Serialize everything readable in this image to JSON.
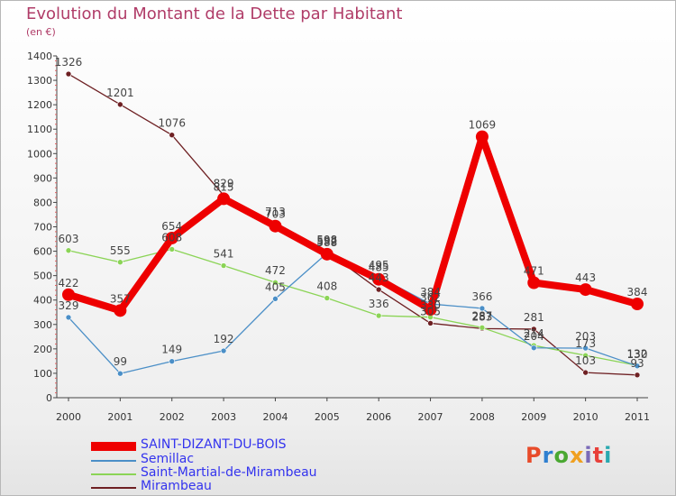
{
  "title": "Evolution du Montant de la Dette par Habitant",
  "subtitle": "(en €)",
  "brand": {
    "text": "Proxiti",
    "colors": [
      "#e84b2a",
      "#2f7fd0",
      "#4aa832",
      "#f0a020",
      "#7a6ab8",
      "#e8403a",
      "#2aa9b0"
    ]
  },
  "chart_data": {
    "type": "line",
    "title": "Evolution du Montant de la Dette par Habitant",
    "subtitle": "(en €)",
    "x": [
      "2000",
      "2001",
      "2002",
      "2003",
      "2004",
      "2005",
      "2006",
      "2007",
      "2008",
      "2009",
      "2010",
      "2011"
    ],
    "ylim": [
      0,
      1400
    ],
    "yticks": [
      "0",
      "100",
      "200",
      "300",
      "400",
      "500",
      "600",
      "700",
      "800",
      "900",
      "1000",
      "1100",
      "1200",
      "1300",
      "1400"
    ],
    "grid": false,
    "legend_position": "bottom-left",
    "series": [
      {
        "name": "SAINT-DIZANT-DU-BOIS",
        "color": "#ee0000",
        "values": [
          422,
          357,
          654,
          815,
          703,
          588,
          485,
          362,
          1069,
          471,
          443,
          384
        ]
      },
      {
        "name": "Semillac",
        "color": "#4b8fc7",
        "values": [
          329,
          99,
          149,
          192,
          405,
          592,
          495,
          384,
          366,
          204,
          203,
          130
        ]
      },
      {
        "name": "Saint-Martial-de-Mirambeau",
        "color": "#8bd456",
        "values": [
          603,
          555,
          608,
          541,
          472,
          408,
          336,
          330,
          287,
          214,
          173,
          132
        ]
      },
      {
        "name": "Mirambeau",
        "color": "#6e2023",
        "values": [
          1326,
          1201,
          1076,
          829,
          713,
          598,
          443,
          305,
          283,
          281,
          103,
          93
        ]
      }
    ]
  }
}
